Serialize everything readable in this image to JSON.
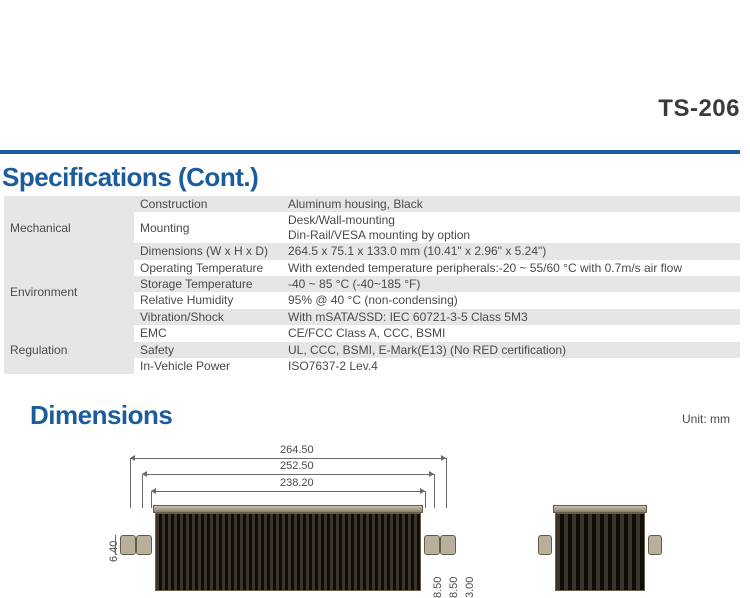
{
  "product_code": "TS-206",
  "section_spec_title": "Specifications (Cont.)",
  "section_dim_title": "Dimensions",
  "unit_label": "Unit: mm",
  "colors": {
    "accent": "#1a5c9e",
    "row_alt": "#e6e6e6",
    "text": "#4a4a4a",
    "heatsink_light": "#c9c0ab",
    "heatsink_dark": "#2a241c"
  },
  "spec_rows": [
    {
      "cat": "",
      "attr": "Construction",
      "val": "Aluminum housing, Black"
    },
    {
      "cat": "Mechanical",
      "attr": "Mounting",
      "val": "Desk/Wall-mounting\nDin-Rail/VESA mounting by option"
    },
    {
      "cat": "",
      "attr": "Dimensions (W x H x D)",
      "val": "264.5 x 75.1 x 133.0 mm (10.41\" x 2.96\" x 5.24\")"
    },
    {
      "cat": "",
      "attr": "Operating Temperature",
      "val": "With extended temperature peripherals:-20 ~ 55/60 °C with 0.7m/s air flow"
    },
    {
      "cat": "Environment",
      "attr": "Storage Temperature",
      "val": "-40 ~ 85 °C (-40~185 °F)"
    },
    {
      "cat": "",
      "attr": "Relative Humidity",
      "val": "95% @ 40 °C (non-condensing)"
    },
    {
      "cat": "",
      "attr": "Vibration/Shock",
      "val": "With mSATA/SSD: IEC 60721-3-5 Class 5M3"
    },
    {
      "cat": "",
      "attr": "EMC",
      "val": "CE/FCC Class A, CCC, BSMI"
    },
    {
      "cat": "Regulation",
      "attr": "Safety",
      "val": "UL, CCC, BSMI, E-Mark(E13) (No RED certification)"
    },
    {
      "cat": "",
      "attr": "In-Vehicle Power",
      "val": "ISO7637-2 Lev.4"
    }
  ],
  "dimensions": {
    "top_width_1": "264.50",
    "top_width_2": "252.50",
    "top_width_3": "238.20",
    "left_v": "6.40",
    "bottom_v_1": "8.50",
    "bottom_v_2": "8.50",
    "bottom_v_3": "3.00"
  }
}
